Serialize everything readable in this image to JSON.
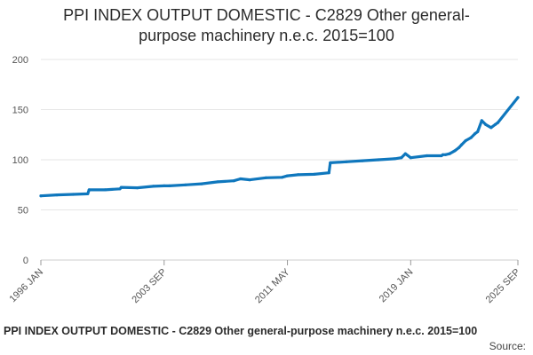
{
  "chart_data": {
    "type": "line",
    "title_lines": [
      "PPI INDEX OUTPUT DOMESTIC - C2829 Other general-",
      "purpose machinery n.e.c. 2015=100"
    ],
    "footer_title": "PPI INDEX OUTPUT DOMESTIC - C2829 Other general-purpose machinery n.e.c. 2015=100",
    "source_label": "Source:",
    "ylim": [
      0,
      200
    ],
    "yticks": [
      0,
      50,
      100,
      150,
      200
    ],
    "xlim": [
      "1996-01",
      "2025-09"
    ],
    "xticks": [
      "1996 JAN",
      "2003 SEP",
      "2011 MAY",
      "2019 JAN",
      "2025 SEP"
    ],
    "grid": true,
    "line_color": "#0f77bd",
    "series": [
      {
        "x": [
          "1996-01",
          "1997-01",
          "1998-01",
          "1998-12",
          "1999-01",
          "2000-01",
          "2000-12",
          "2001-01",
          "2002-01",
          "2003-01",
          "2003-09",
          "2004-01",
          "2005-01",
          "2006-01",
          "2007-01",
          "2008-01",
          "2008-06",
          "2009-01",
          "2010-01",
          "2011-01",
          "2011-05",
          "2012-01",
          "2013-01",
          "2013-12",
          "2014-01",
          "2015-01",
          "2016-01",
          "2017-01",
          "2018-01",
          "2018-06",
          "2018-09",
          "2019-01",
          "2020-01",
          "2020-12",
          "2021-01",
          "2021-03",
          "2021-06",
          "2021-10",
          "2022-01",
          "2022-03",
          "2022-06",
          "2022-10",
          "2023-01",
          "2023-03",
          "2023-06",
          "2023-09",
          "2024-01",
          "2024-04",
          "2024-06",
          "2025-09"
        ],
        "values": [
          64,
          65,
          65.5,
          66,
          70,
          70,
          71,
          72.5,
          72,
          73.5,
          74,
          74,
          75,
          76,
          78,
          79,
          81,
          80,
          82,
          82.5,
          84,
          85,
          85.5,
          87,
          97,
          98,
          99,
          100,
          101,
          102,
          106,
          102,
          104,
          104,
          105,
          105,
          106,
          109,
          112,
          115,
          119,
          122,
          126,
          128,
          139,
          135,
          132,
          135,
          137,
          162
        ]
      }
    ]
  }
}
